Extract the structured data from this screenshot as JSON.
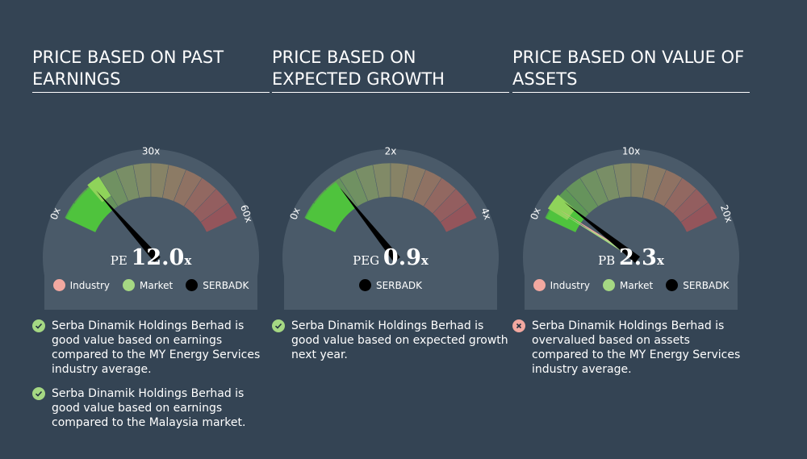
{
  "colors": {
    "background": "#344454",
    "industry": "#f2a8a0",
    "market": "#a5d883",
    "company": "#000000",
    "good": "#a5d883",
    "bad": "#f2a8a0"
  },
  "panels": [
    {
      "title": "PRICE BASED ON PAST EARNINGS",
      "legend": [
        {
          "label": "Industry",
          "color": "#f2a8a0"
        },
        {
          "label": "Market",
          "color": "#a5d883"
        },
        {
          "label": "SERBADK",
          "color": "#000000"
        }
      ],
      "verdicts": [
        {
          "status": "good",
          "icon": "check-icon",
          "text": "Serba Dinamik Holdings Berhad is good value based on earnings compared to the MY Energy Services industry average."
        },
        {
          "status": "good",
          "icon": "check-icon",
          "text": "Serba Dinamik Holdings Berhad is good value based on earnings compared to the Malaysia market."
        }
      ]
    },
    {
      "title": "PRICE BASED ON EXPECTED GROWTH",
      "legend": [
        {
          "label": "SERBADK",
          "color": "#000000"
        }
      ],
      "verdicts": [
        {
          "status": "good",
          "icon": "check-icon",
          "text": "Serba Dinamik Holdings Berhad is good value based on expected growth next year."
        }
      ]
    },
    {
      "title": "PRICE BASED ON VALUE OF ASSETS",
      "legend": [
        {
          "label": "Industry",
          "color": "#f2a8a0"
        },
        {
          "label": "Market",
          "color": "#a5d883"
        },
        {
          "label": "SERBADK",
          "color": "#000000"
        }
      ],
      "verdicts": [
        {
          "status": "bad",
          "icon": "cross-icon",
          "text": "Serba Dinamik Holdings Berhad is overvalued based on assets compared to the MY Energy Services industry average."
        }
      ]
    }
  ],
  "chart_data": [
    {
      "type": "gauge",
      "metric": "PE",
      "value_text": "12.0",
      "unit": "x",
      "min": 0,
      "max": 60,
      "tick_labels": [
        "0x",
        "30x",
        "60x"
      ],
      "company_value": 12.0,
      "market_value": 14.5,
      "industry_value": null
    },
    {
      "type": "gauge",
      "metric": "PEG",
      "value_text": "0.9",
      "unit": "x",
      "min": 0,
      "max": 4,
      "tick_labels": [
        "0x",
        "2x",
        "4x"
      ],
      "company_value": 0.9,
      "market_value": null,
      "industry_value": null
    },
    {
      "type": "gauge",
      "metric": "PB",
      "value_text": "2.3",
      "unit": "x",
      "min": 0,
      "max": 20,
      "tick_labels": [
        "0x",
        "10x",
        "20x"
      ],
      "company_value": 2.3,
      "market_value": 1.2,
      "industry_value": 1.4
    }
  ]
}
